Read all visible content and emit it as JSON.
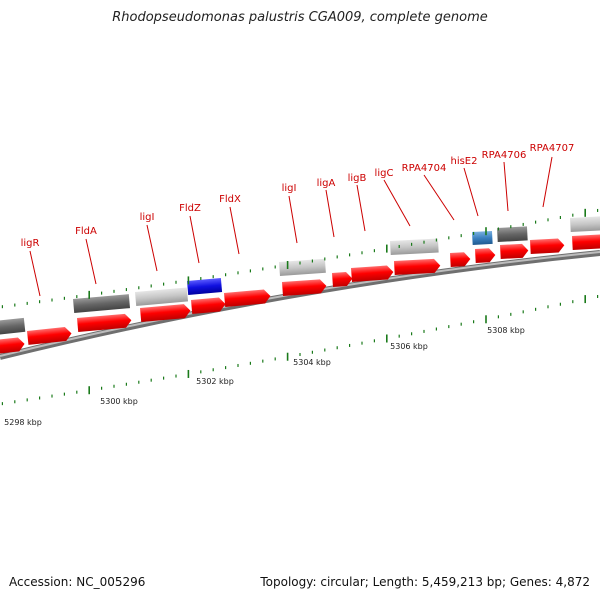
{
  "title": "Rhodopseudomonas palustris CGA009, complete genome",
  "accession": "Accession: NC_005296",
  "topology": "Topology: circular; Length: 5,459,213 bp; Genes: 4,872",
  "colors": {
    "label": "#cc0000",
    "gene_red": "#ff0000",
    "backbone": "#8a8a8a",
    "tick": "#1a7a1a",
    "dark_gray": "#6a6a6a",
    "light_gray": "#c8c8c8",
    "blue": "#1010e0",
    "steel_blue": "#3a80c0"
  },
  "gene_labels": [
    "ligR",
    "FldA",
    "ligI",
    "FldZ",
    "FldX",
    "ligI",
    "ligA",
    "ligB",
    "ligC",
    "RPA4704",
    "hisE2",
    "RPA4706",
    "RPA4707"
  ],
  "scale_labels": [
    "5298 kbp",
    "5300 kbp",
    "5302 kbp",
    "5304 kbp",
    "5306 kbp",
    "5308 kbp"
  ]
}
